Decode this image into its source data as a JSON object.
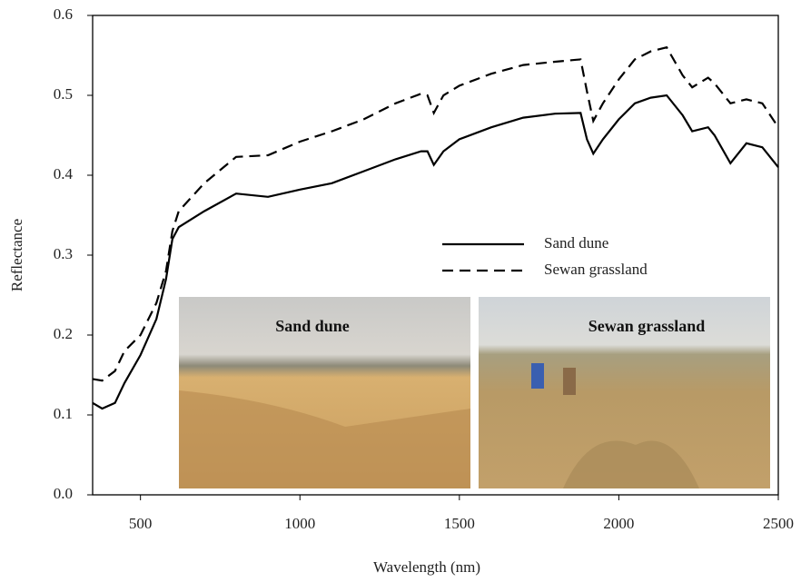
{
  "chart_data": {
    "type": "line",
    "xlabel": "Wavelength (nm)",
    "ylabel": "Reflectance",
    "x": [
      350,
      380,
      420,
      450,
      500,
      550,
      580,
      600,
      620,
      700,
      800,
      900,
      1000,
      1100,
      1200,
      1300,
      1380,
      1400,
      1420,
      1450,
      1500,
      1600,
      1700,
      1800,
      1880,
      1900,
      1920,
      1950,
      2000,
      2050,
      2100,
      2150,
      2200,
      2230,
      2280,
      2300,
      2350,
      2400,
      2450,
      2500
    ],
    "series": [
      {
        "name": "Sand dune",
        "color": "#000000",
        "linestyle": "solid",
        "values": [
          0.115,
          0.108,
          0.115,
          0.14,
          0.175,
          0.22,
          0.27,
          0.32,
          0.335,
          0.355,
          0.377,
          0.373,
          0.382,
          0.39,
          0.405,
          0.42,
          0.43,
          0.43,
          0.413,
          0.43,
          0.445,
          0.46,
          0.472,
          0.477,
          0.478,
          0.445,
          0.427,
          0.445,
          0.47,
          0.49,
          0.497,
          0.5,
          0.475,
          0.455,
          0.46,
          0.45,
          0.415,
          0.44,
          0.435,
          0.41
        ]
      },
      {
        "name": "Sewan grassland",
        "color": "#000000",
        "linestyle": "dashed",
        "values": [
          0.145,
          0.143,
          0.155,
          0.18,
          0.2,
          0.24,
          0.28,
          0.33,
          0.355,
          0.39,
          0.423,
          0.425,
          0.442,
          0.455,
          0.47,
          0.49,
          0.502,
          0.5,
          0.478,
          0.5,
          0.512,
          0.527,
          0.538,
          0.542,
          0.545,
          0.505,
          0.468,
          0.49,
          0.52,
          0.545,
          0.555,
          0.56,
          0.525,
          0.51,
          0.522,
          0.515,
          0.49,
          0.495,
          0.49,
          0.46
        ]
      }
    ],
    "xlim": [
      350,
      2500
    ],
    "xticks": [
      500,
      1000,
      1500,
      2000,
      2500
    ],
    "ylim": [
      0,
      0.6
    ],
    "yticks": [
      {
        "value": 0,
        "label": "0.0"
      },
      0.1,
      0.2,
      0.3,
      0.4,
      0.5,
      0.6
    ],
    "legend": "right",
    "annotations": [
      "Sand dune",
      "Sewan grassland"
    ]
  }
}
